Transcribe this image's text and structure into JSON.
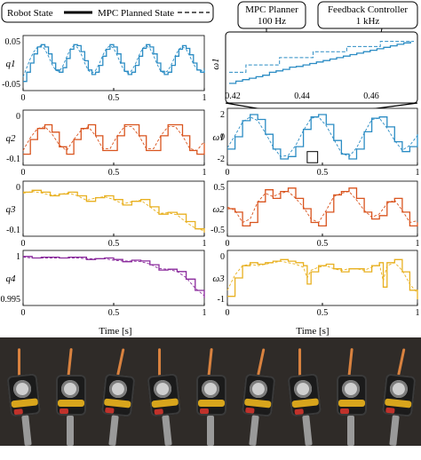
{
  "legend": {
    "robot_state": "Robot State",
    "mpc_planned": "MPC Planned State"
  },
  "inset_labels": {
    "mpc_planner": "MPC Planner",
    "mpc_rate": "100 Hz",
    "feedback_controller": "Feedback Controller",
    "feedback_rate": "1 kHz"
  },
  "colors": {
    "q1": "#2b8cc4",
    "q2": "#d9541e",
    "q3": "#e8b020",
    "q4": "#8a2a9c"
  },
  "chart_data": [
    {
      "type": "line",
      "panel": "q1",
      "ylabel": "q1",
      "yticks": [
        "0.05",
        "-0.05"
      ],
      "ylim": [
        -0.06,
        0.06
      ],
      "xticks": [
        "0",
        "0.5",
        "1"
      ],
      "xlim": [
        0,
        1
      ],
      "series": [
        {
          "style": "robot",
          "x": [
            0,
            0.02,
            0.04,
            0.06,
            0.08,
            0.1,
            0.12,
            0.14,
            0.16,
            0.18,
            0.2,
            0.22,
            0.24,
            0.26,
            0.28,
            0.3,
            0.32,
            0.34,
            0.36,
            0.38,
            0.4,
            0.42,
            0.44,
            0.46,
            0.48,
            0.5,
            0.52,
            0.54,
            0.56,
            0.58,
            0.6,
            0.62,
            0.64,
            0.66,
            0.68,
            0.7,
            0.72,
            0.74,
            0.76,
            0.78,
            0.8,
            0.82,
            0.84,
            0.86,
            0.88,
            0.9,
            0.92,
            0.94,
            0.96,
            0.98,
            1.0
          ],
          "y": [
            -0.04,
            -0.02,
            0.0,
            0.02,
            0.035,
            0.04,
            0.035,
            0.02,
            0.0,
            -0.015,
            -0.02,
            -0.01,
            0.01,
            0.03,
            0.04,
            0.038,
            0.025,
            0.005,
            -0.015,
            -0.025,
            -0.02,
            -0.005,
            0.015,
            0.03,
            0.04,
            0.035,
            0.02,
            0.0,
            -0.018,
            -0.025,
            -0.02,
            -0.005,
            0.015,
            0.032,
            0.04,
            0.035,
            0.02,
            0.0,
            -0.018,
            -0.025,
            -0.02,
            -0.005,
            0.015,
            0.03,
            0.038,
            0.032,
            0.018,
            0.0,
            -0.015,
            -0.02,
            -0.015
          ]
        },
        {
          "style": "planned",
          "x": [
            0,
            0.02,
            0.04,
            0.06,
            0.08,
            0.1,
            0.12,
            0.14,
            0.16,
            0.18,
            0.2,
            0.22,
            0.24,
            0.26,
            0.28,
            0.3,
            0.32,
            0.34,
            0.36,
            0.38,
            0.4,
            0.42,
            0.44,
            0.46,
            0.48,
            0.5,
            0.52,
            0.54,
            0.56,
            0.58,
            0.6,
            0.62,
            0.64,
            0.66,
            0.68,
            0.7,
            0.72,
            0.74,
            0.76,
            0.78,
            0.8,
            0.82,
            0.84,
            0.86,
            0.88,
            0.9,
            0.92,
            0.94,
            0.96,
            0.98,
            1.0
          ],
          "y": [
            -0.03,
            -0.01,
            0.01,
            0.025,
            0.035,
            0.038,
            0.03,
            0.015,
            -0.003,
            -0.016,
            -0.018,
            -0.006,
            0.013,
            0.03,
            0.038,
            0.034,
            0.02,
            0.0,
            -0.016,
            -0.022,
            -0.016,
            -0.002,
            0.017,
            0.032,
            0.038,
            0.032,
            0.016,
            -0.003,
            -0.018,
            -0.022,
            -0.016,
            -0.002,
            0.017,
            0.032,
            0.038,
            0.032,
            0.016,
            -0.003,
            -0.018,
            -0.022,
            -0.016,
            -0.002,
            0.016,
            0.03,
            0.036,
            0.03,
            0.015,
            -0.002,
            -0.014,
            -0.018,
            -0.012
          ]
        }
      ]
    },
    {
      "type": "line",
      "panel": "q2",
      "ylabel": "q2",
      "yticks": [
        "0",
        "-0.1"
      ],
      "ylim": [
        -0.12,
        0.03
      ],
      "xticks": [
        "0",
        "0.5",
        "1"
      ],
      "xlim": [
        0,
        1
      ],
      "series": [
        {
          "style": "robot",
          "x": [
            0,
            0.04,
            0.08,
            0.12,
            0.16,
            0.2,
            0.24,
            0.28,
            0.32,
            0.36,
            0.4,
            0.44,
            0.48,
            0.52,
            0.56,
            0.6,
            0.64,
            0.68,
            0.72,
            0.76,
            0.8,
            0.84,
            0.88,
            0.92,
            0.96,
            1.0
          ],
          "y": [
            -0.09,
            -0.05,
            -0.02,
            -0.01,
            -0.03,
            -0.07,
            -0.09,
            -0.05,
            -0.02,
            -0.01,
            -0.04,
            -0.08,
            -0.08,
            -0.04,
            -0.01,
            -0.01,
            -0.04,
            -0.08,
            -0.08,
            -0.04,
            -0.01,
            -0.01,
            -0.04,
            -0.08,
            -0.09,
            -0.06
          ]
        },
        {
          "style": "planned",
          "x": [
            0,
            0.04,
            0.08,
            0.12,
            0.16,
            0.2,
            0.24,
            0.28,
            0.32,
            0.36,
            0.4,
            0.44,
            0.48,
            0.52,
            0.56,
            0.6,
            0.64,
            0.68,
            0.72,
            0.76,
            0.8,
            0.84,
            0.88,
            0.92,
            0.96,
            1.0
          ],
          "y": [
            -0.08,
            -0.045,
            -0.02,
            -0.015,
            -0.035,
            -0.065,
            -0.08,
            -0.05,
            -0.025,
            -0.015,
            -0.04,
            -0.075,
            -0.075,
            -0.04,
            -0.015,
            -0.015,
            -0.04,
            -0.075,
            -0.075,
            -0.04,
            -0.015,
            -0.015,
            -0.04,
            -0.075,
            -0.08,
            -0.055
          ]
        }
      ]
    },
    {
      "type": "line",
      "panel": "q3",
      "ylabel": "q3",
      "yticks": [
        "0",
        "-0.1"
      ],
      "ylim": [
        -0.12,
        0.03
      ],
      "xticks": [
        "0",
        "0.5",
        "1"
      ],
      "xlim": [
        0,
        1
      ],
      "series": [
        {
          "style": "robot",
          "x": [
            0,
            0.05,
            0.1,
            0.15,
            0.2,
            0.25,
            0.3,
            0.35,
            0.4,
            0.45,
            0.5,
            0.55,
            0.6,
            0.65,
            0.7,
            0.75,
            0.8,
            0.85,
            0.9,
            0.95,
            1.0
          ],
          "y": [
            0.0,
            0.005,
            0.0,
            -0.01,
            -0.005,
            0.0,
            -0.01,
            -0.025,
            -0.015,
            -0.01,
            -0.02,
            -0.035,
            -0.025,
            -0.02,
            -0.04,
            -0.06,
            -0.055,
            -0.06,
            -0.08,
            -0.1,
            -0.11
          ]
        },
        {
          "style": "planned",
          "x": [
            0,
            0.05,
            0.1,
            0.15,
            0.2,
            0.25,
            0.3,
            0.35,
            0.4,
            0.45,
            0.5,
            0.55,
            0.6,
            0.65,
            0.7,
            0.75,
            0.8,
            0.85,
            0.9,
            0.95,
            1.0
          ],
          "y": [
            -0.003,
            0.002,
            -0.002,
            -0.008,
            -0.006,
            -0.002,
            -0.01,
            -0.022,
            -0.016,
            -0.012,
            -0.02,
            -0.032,
            -0.026,
            -0.022,
            -0.04,
            -0.058,
            -0.056,
            -0.062,
            -0.082,
            -0.098,
            -0.105
          ]
        }
      ]
    },
    {
      "type": "line",
      "panel": "q4",
      "ylabel": "q4",
      "yticks": [
        "1",
        "0.995"
      ],
      "ylim": [
        0.9935,
        1.0008
      ],
      "xticks": [
        "0",
        "0.5",
        "1"
      ],
      "xlim": [
        0,
        1
      ],
      "series": [
        {
          "style": "robot",
          "x": [
            0,
            0.05,
            0.1,
            0.15,
            0.2,
            0.25,
            0.3,
            0.35,
            0.4,
            0.45,
            0.5,
            0.55,
            0.6,
            0.65,
            0.7,
            0.75,
            0.8,
            0.85,
            0.9,
            0.95,
            1.0
          ],
          "y": [
            1.0,
            0.9998,
            0.9999,
            0.9999,
            0.9998,
            0.9999,
            0.9999,
            0.9996,
            0.9997,
            0.9998,
            0.9996,
            0.9993,
            0.9995,
            0.9994,
            0.9989,
            0.9982,
            0.9983,
            0.998,
            0.997,
            0.9955,
            0.9945
          ]
        },
        {
          "style": "planned",
          "x": [
            0,
            0.05,
            0.1,
            0.15,
            0.2,
            0.25,
            0.3,
            0.35,
            0.4,
            0.45,
            0.5,
            0.55,
            0.6,
            0.65,
            0.7,
            0.75,
            0.8,
            0.85,
            0.9,
            0.95,
            1.0
          ],
          "y": [
            0.9999,
            0.9998,
            0.9998,
            0.9998,
            0.9998,
            0.9998,
            0.9998,
            0.9997,
            0.9997,
            0.9997,
            0.9995,
            0.9994,
            0.9994,
            0.9993,
            0.999,
            0.9984,
            0.9983,
            0.998,
            0.9972,
            0.9958,
            0.9948
          ]
        }
      ]
    },
    {
      "type": "line",
      "panel": "w1",
      "ylabel": "ω1",
      "yticks": [
        "2",
        "0",
        "-2"
      ],
      "ylim": [
        -2.3,
        2.3
      ],
      "xticks": [
        "0",
        "0.5",
        "1"
      ],
      "xlim": [
        0,
        1
      ],
      "series": [
        {
          "style": "robot",
          "x": [
            0,
            0.04,
            0.08,
            0.12,
            0.16,
            0.2,
            0.24,
            0.28,
            0.32,
            0.36,
            0.4,
            0.44,
            0.48,
            0.52,
            0.56,
            0.6,
            0.64,
            0.68,
            0.72,
            0.76,
            0.8,
            0.84,
            0.88,
            0.92,
            0.96,
            1.0
          ],
          "y": [
            -1.0,
            0.0,
            1.3,
            1.8,
            1.4,
            0.2,
            -1.0,
            -1.8,
            -1.6,
            -0.8,
            0.6,
            1.6,
            1.8,
            1.0,
            -0.3,
            -1.4,
            -1.8,
            -1.0,
            0.4,
            1.5,
            1.6,
            0.8,
            -0.4,
            -1.2,
            -0.8,
            0.2
          ]
        },
        {
          "style": "planned",
          "x": [
            0,
            0.04,
            0.08,
            0.12,
            0.16,
            0.2,
            0.24,
            0.28,
            0.32,
            0.36,
            0.4,
            0.44,
            0.48,
            0.52,
            0.56,
            0.6,
            0.64,
            0.68,
            0.72,
            0.76,
            0.8,
            0.84,
            0.88,
            0.92,
            0.96,
            1.0
          ],
          "y": [
            -0.9,
            0.1,
            1.2,
            1.6,
            1.3,
            0.3,
            -0.8,
            -1.6,
            -1.5,
            -0.7,
            0.5,
            1.5,
            1.6,
            0.9,
            -0.2,
            -1.3,
            -1.6,
            -0.9,
            0.3,
            1.4,
            1.5,
            0.7,
            -0.3,
            -1.1,
            -0.7,
            0.1
          ]
        }
      ]
    },
    {
      "type": "line",
      "panel": "w2",
      "ylabel": "ω2",
      "yticks": [
        "0.5",
        "-0.5"
      ],
      "ylim": [
        -0.8,
        0.8
      ],
      "xticks": [
        "0",
        "0.5",
        "1"
      ],
      "xlim": [
        0,
        1
      ],
      "series": [
        {
          "style": "robot",
          "x": [
            0,
            0.04,
            0.08,
            0.12,
            0.16,
            0.2,
            0.24,
            0.28,
            0.32,
            0.36,
            0.4,
            0.44,
            0.48,
            0.52,
            0.56,
            0.6,
            0.64,
            0.68,
            0.72,
            0.76,
            0.8,
            0.84,
            0.88,
            0.92,
            0.96,
            1.0
          ],
          "y": [
            0.0,
            -0.1,
            -0.5,
            -0.4,
            0.2,
            0.55,
            0.3,
            0.5,
            0.6,
            0.3,
            0.0,
            -0.4,
            -0.5,
            -0.1,
            0.4,
            0.5,
            0.6,
            0.3,
            -0.1,
            -0.3,
            -0.2,
            0.2,
            0.3,
            -0.1,
            -0.5,
            -0.4
          ]
        },
        {
          "style": "planned",
          "x": [
            0,
            0.04,
            0.08,
            0.12,
            0.16,
            0.2,
            0.24,
            0.28,
            0.32,
            0.36,
            0.4,
            0.44,
            0.48,
            0.52,
            0.56,
            0.6,
            0.64,
            0.68,
            0.72,
            0.76,
            0.8,
            0.84,
            0.88,
            0.92,
            0.96,
            1.0
          ],
          "y": [
            0.05,
            -0.05,
            -0.4,
            -0.3,
            0.2,
            0.45,
            0.35,
            0.45,
            0.5,
            0.3,
            0.05,
            -0.3,
            -0.4,
            -0.05,
            0.35,
            0.45,
            0.5,
            0.25,
            -0.05,
            -0.25,
            -0.15,
            0.15,
            0.25,
            -0.05,
            -0.4,
            -0.35
          ]
        }
      ]
    },
    {
      "type": "line",
      "panel": "w3",
      "ylabel": "ω3",
      "yticks": [
        "0",
        "-1"
      ],
      "ylim": [
        -1.3,
        0.5
      ],
      "xticks": [
        "0",
        "0.5",
        "1"
      ],
      "xlim": [
        0,
        1
      ],
      "series": [
        {
          "style": "robot",
          "x": [
            0,
            0.04,
            0.08,
            0.12,
            0.16,
            0.2,
            0.24,
            0.28,
            0.32,
            0.36,
            0.4,
            0.42,
            0.44,
            0.48,
            0.52,
            0.56,
            0.6,
            0.64,
            0.68,
            0.72,
            0.76,
            0.8,
            0.82,
            0.84,
            0.88,
            0.92,
            0.96,
            1.0
          ],
          "y": [
            -1.0,
            -0.4,
            0.0,
            0.1,
            0.05,
            0.1,
            0.15,
            0.2,
            0.15,
            0.1,
            0.0,
            -0.6,
            -0.2,
            0.0,
            0.05,
            -0.1,
            -0.2,
            -0.1,
            -0.1,
            -0.2,
            0.0,
            0.1,
            -0.7,
            0.1,
            0.2,
            -0.2,
            -0.8,
            -1.1
          ]
        },
        {
          "style": "planned",
          "x": [
            0,
            0.04,
            0.08,
            0.12,
            0.16,
            0.2,
            0.24,
            0.28,
            0.32,
            0.36,
            0.4,
            0.42,
            0.44,
            0.48,
            0.52,
            0.56,
            0.6,
            0.64,
            0.68,
            0.72,
            0.76,
            0.8,
            0.82,
            0.84,
            0.88,
            0.92,
            0.96,
            1.0
          ],
          "y": [
            -0.8,
            -0.3,
            0.0,
            0.05,
            0.0,
            0.05,
            0.1,
            0.15,
            0.1,
            0.05,
            -0.05,
            -0.4,
            -0.15,
            -0.05,
            0.0,
            -0.1,
            -0.15,
            -0.1,
            -0.1,
            -0.15,
            -0.05,
            0.05,
            -0.5,
            0.0,
            0.1,
            -0.15,
            -0.6,
            -0.9
          ]
        }
      ]
    }
  ],
  "inset": {
    "ylabel": "ω1",
    "xticks": [
      "0.42",
      "0.44",
      "0.46"
    ],
    "xlim": [
      0.42,
      0.475
    ],
    "ylim": [
      -2.2,
      -1.5
    ],
    "planned_x": [
      0.42,
      0.425,
      0.425,
      0.435,
      0.435,
      0.445,
      0.445,
      0.455,
      0.455,
      0.465,
      0.465,
      0.475
    ],
    "planned_y": [
      -2.0,
      -2.0,
      -1.9,
      -1.9,
      -1.8,
      -1.8,
      -1.72,
      -1.72,
      -1.65,
      -1.65,
      -1.58,
      -1.58
    ],
    "robot_x": [
      0.42,
      0.422,
      0.424,
      0.426,
      0.428,
      0.43,
      0.432,
      0.434,
      0.436,
      0.438,
      0.44,
      0.442,
      0.444,
      0.446,
      0.448,
      0.45,
      0.452,
      0.454,
      0.456,
      0.458,
      0.46,
      0.462,
      0.464,
      0.466,
      0.468,
      0.47,
      0.472,
      0.474
    ],
    "robot_y": [
      -2.15,
      -2.12,
      -2.1,
      -2.08,
      -2.06,
      -2.04,
      -2.0,
      -1.98,
      -1.96,
      -1.93,
      -1.92,
      -1.9,
      -1.88,
      -1.86,
      -1.84,
      -1.82,
      -1.8,
      -1.78,
      -1.76,
      -1.74,
      -1.72,
      -1.7,
      -1.68,
      -1.66,
      -1.64,
      -1.62,
      -1.6,
      -1.58
    ]
  },
  "xlabel": "Time [s]",
  "photo_count": 9
}
